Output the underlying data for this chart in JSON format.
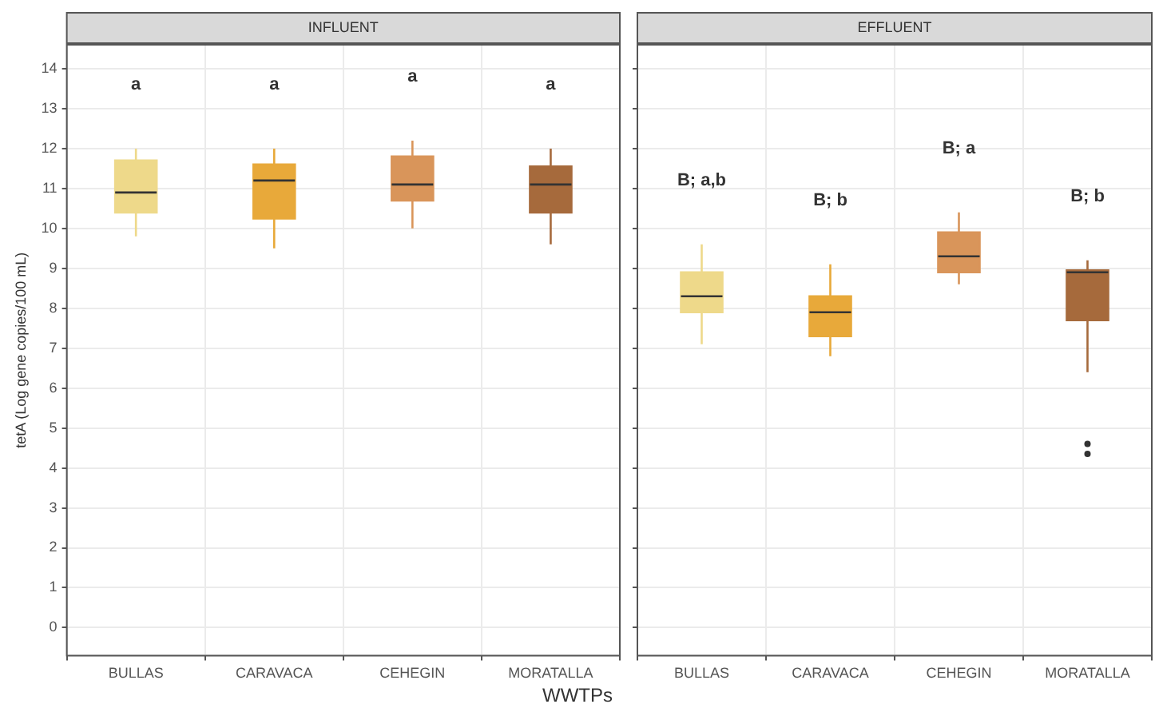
{
  "chart_data": [
    {
      "type": "box",
      "title": "INFLUENT",
      "ylabel": "tetA (Log gene copies/100 mL)",
      "xlabel": "WWTPs",
      "categories": [
        "BULLAS",
        "CARAVACA",
        "CEHEGIN",
        "MORATALLA"
      ],
      "colors": [
        "#eed98a",
        "#e8a93a",
        "#d9955a",
        "#a66a3c"
      ],
      "boxes": [
        {
          "low": 9.8,
          "q1": 10.4,
          "median": 10.9,
          "q3": 11.7,
          "high": 12.0
        },
        {
          "low": 9.5,
          "q1": 10.25,
          "median": 11.2,
          "q3": 11.6,
          "high": 12.0
        },
        {
          "low": 10.0,
          "q1": 10.7,
          "median": 11.1,
          "q3": 11.8,
          "high": 12.2
        },
        {
          "low": 9.6,
          "q1": 10.4,
          "median": 11.1,
          "q3": 11.55,
          "high": 12.0
        }
      ],
      "annotations": [
        "a",
        "a",
        "a",
        "a"
      ],
      "ylim": [
        -0.7,
        14.6
      ],
      "yticks": [
        0,
        1,
        2,
        3,
        4,
        5,
        6,
        7,
        8,
        9,
        10,
        11,
        12,
        13,
        14
      ],
      "grid": true
    },
    {
      "type": "box",
      "title": "EFFLUENT",
      "categories": [
        "BULLAS",
        "CARAVACA",
        "CEHEGIN",
        "MORATALLA"
      ],
      "colors": [
        "#eed98a",
        "#e8a93a",
        "#d9955a",
        "#a66a3c"
      ],
      "boxes": [
        {
          "low": 7.1,
          "q1": 7.9,
          "median": 8.3,
          "q3": 8.9,
          "high": 9.6
        },
        {
          "low": 6.8,
          "q1": 7.3,
          "median": 7.9,
          "q3": 8.3,
          "high": 9.1
        },
        {
          "low": 8.6,
          "q1": 8.9,
          "median": 9.3,
          "q3": 9.9,
          "high": 10.4
        },
        {
          "low": 6.4,
          "q1": 7.7,
          "median": 8.9,
          "q3": 8.95,
          "high": 9.2,
          "outliers": [
            4.6,
            4.35
          ]
        }
      ],
      "annotations": [
        "B; a,b",
        "B; b",
        "B; a",
        "B; b"
      ],
      "ylim": [
        -0.7,
        14.6
      ],
      "yticks": [
        0,
        1,
        2,
        3,
        4,
        5,
        6,
        7,
        8,
        9,
        10,
        11,
        12,
        13,
        14
      ],
      "grid": true,
      "tick_labels": "x"
    }
  ]
}
